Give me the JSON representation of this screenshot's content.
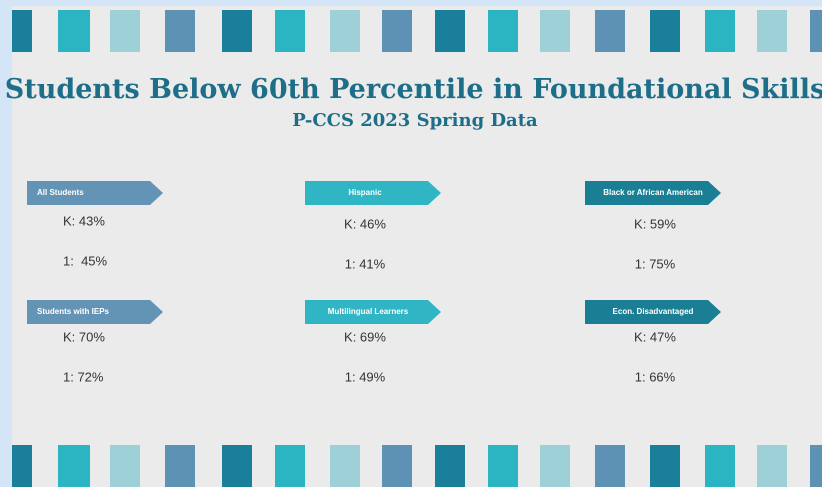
{
  "header": {
    "title": "Students Below 60th Percentile in Foundational Skills",
    "subtitle": "P-CCS 2023 Spring Data"
  },
  "groups": [
    {
      "label": "All Students",
      "k": "K: 43%",
      "first": "1:  45%"
    },
    {
      "label": "Hispanic",
      "k": "K: 46%",
      "first": "1: 41%"
    },
    {
      "label": "Black or African American",
      "k": "K: 59%",
      "first": "1: 75%"
    },
    {
      "label": "Students with IEPs",
      "k": "K: 70%",
      "first": "1: 72%"
    },
    {
      "label": "Multilingual Learners",
      "k": "K: 69%",
      "first": "1: 49%"
    },
    {
      "label": "Econ. Disadvantaged",
      "k": "K: 47%",
      "first": "1: 66%"
    }
  ]
}
